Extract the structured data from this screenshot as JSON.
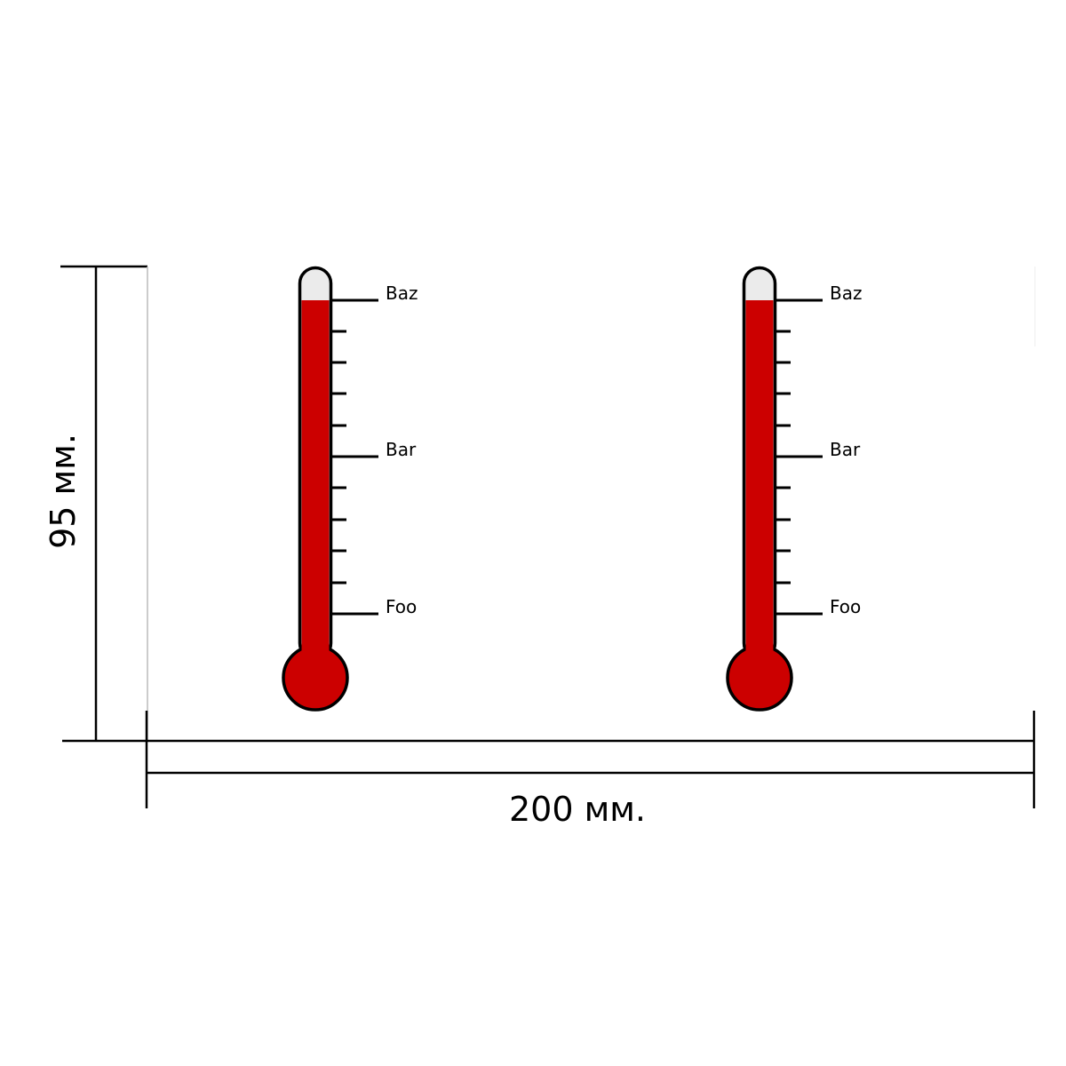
{
  "dimensions": {
    "height_label": "95 мм.",
    "width_label": "200 мм."
  },
  "thermometers": [
    {
      "labels": {
        "top": "Baz",
        "middle": "Bar",
        "bottom": "Foo"
      },
      "fill_color": "#cc0000",
      "empty_color": "#ebebeb"
    },
    {
      "labels": {
        "top": "Baz",
        "middle": "Bar",
        "bottom": "Foo"
      },
      "fill_color": "#cc0000",
      "empty_color": "#ebebeb"
    }
  ]
}
